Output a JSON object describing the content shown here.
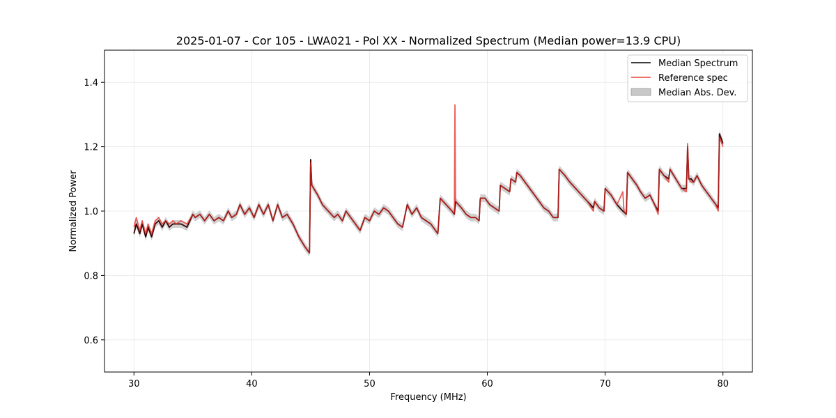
{
  "chart_data": {
    "type": "line",
    "title": "2025-01-07 - Cor 105 - LWA021 - Pol XX - Normalized Spectrum (Median power=13.9 CPU)",
    "xlabel": "Frequency (MHz)",
    "ylabel": "Normalized Power",
    "xlim": [
      27.5,
      82.5
    ],
    "ylim": [
      0.5,
      1.5
    ],
    "xticks": [
      30,
      40,
      50,
      60,
      70,
      80
    ],
    "yticks": [
      0.6,
      0.8,
      1.0,
      1.2,
      1.4
    ],
    "xtick_labels": [
      "30",
      "40",
      "50",
      "60",
      "70",
      "80"
    ],
    "ytick_labels": [
      "0.6",
      "0.8",
      "1.0",
      "1.2",
      "1.4"
    ],
    "grid": true,
    "legend_position": "top-right",
    "legend": [
      "Median Spectrum",
      "Reference spec",
      "Median Abs. Dev."
    ],
    "colors": {
      "median": "#000000",
      "reference": "#e8403a",
      "mad": "#b0b0b0",
      "overlap": "#8b0000"
    },
    "series": [
      {
        "name": "Median Spectrum",
        "x": [
          30.0,
          30.2,
          30.5,
          30.7,
          31.0,
          31.2,
          31.5,
          31.8,
          32.1,
          32.4,
          32.7,
          33.0,
          33.3,
          33.6,
          34.0,
          34.5,
          35.0,
          35.2,
          35.6,
          36.0,
          36.4,
          36.8,
          37.2,
          37.6,
          38.0,
          38.3,
          38.7,
          39.0,
          39.4,
          39.8,
          40.2,
          40.6,
          41.0,
          41.4,
          41.8,
          42.2,
          42.6,
          43.0,
          43.5,
          44.0,
          44.5,
          44.9,
          45.0,
          45.1,
          45.6,
          46.0,
          46.5,
          47.0,
          47.3,
          47.7,
          48.0,
          48.4,
          48.8,
          49.2,
          49.6,
          50.0,
          50.4,
          50.8,
          51.2,
          51.6,
          52.0,
          52.4,
          52.8,
          53.2,
          53.6,
          54.0,
          54.4,
          54.8,
          55.2,
          55.6,
          55.8,
          56.0,
          56.5,
          57.0,
          57.2,
          57.3,
          57.8,
          58.2,
          58.6,
          59.0,
          59.3,
          59.4,
          59.8,
          60.2,
          60.6,
          61.0,
          61.1,
          61.5,
          61.9,
          62.0,
          62.4,
          62.5,
          62.8,
          63.2,
          63.6,
          64.0,
          64.4,
          64.8,
          65.2,
          65.6,
          66.0,
          66.1,
          66.6,
          67.0,
          67.5,
          68.0,
          68.5,
          69.0,
          69.1,
          69.5,
          69.9,
          70.0,
          70.5,
          71.0,
          71.5,
          71.8,
          71.9,
          72.3,
          72.7,
          73.0,
          73.4,
          73.8,
          74.2,
          74.5,
          74.6,
          75.0,
          75.4,
          75.5,
          76.0,
          76.5,
          76.9,
          77.0,
          77.1,
          77.3,
          77.5,
          77.8,
          78.2,
          78.6,
          79.0,
          79.4,
          79.6,
          79.7,
          80.0
        ],
        "values": [
          0.93,
          0.96,
          0.93,
          0.96,
          0.92,
          0.95,
          0.92,
          0.96,
          0.97,
          0.95,
          0.97,
          0.95,
          0.96,
          0.96,
          0.96,
          0.95,
          0.99,
          0.98,
          0.99,
          0.97,
          0.99,
          0.97,
          0.98,
          0.97,
          1.0,
          0.98,
          0.99,
          1.02,
          0.99,
          1.01,
          0.98,
          1.02,
          0.99,
          1.02,
          0.97,
          1.02,
          0.98,
          0.99,
          0.96,
          0.92,
          0.89,
          0.87,
          1.16,
          1.08,
          1.05,
          1.02,
          1.0,
          0.98,
          0.99,
          0.97,
          1.0,
          0.98,
          0.96,
          0.94,
          0.98,
          0.97,
          1.0,
          0.99,
          1.01,
          1.0,
          0.98,
          0.96,
          0.95,
          1.02,
          0.99,
          1.01,
          0.98,
          0.97,
          0.96,
          0.94,
          0.93,
          1.04,
          1.02,
          1.0,
          0.99,
          1.03,
          1.01,
          0.99,
          0.98,
          0.98,
          0.97,
          1.04,
          1.04,
          1.02,
          1.01,
          1.0,
          1.08,
          1.07,
          1.06,
          1.1,
          1.09,
          1.12,
          1.11,
          1.09,
          1.07,
          1.05,
          1.03,
          1.01,
          1.0,
          0.98,
          0.98,
          1.13,
          1.11,
          1.09,
          1.07,
          1.05,
          1.03,
          1.01,
          1.03,
          1.01,
          1.0,
          1.07,
          1.05,
          1.02,
          1.0,
          0.99,
          1.12,
          1.1,
          1.08,
          1.06,
          1.04,
          1.05,
          1.02,
          1.0,
          1.13,
          1.11,
          1.1,
          1.13,
          1.1,
          1.07,
          1.07,
          1.2,
          1.1,
          1.1,
          1.09,
          1.11,
          1.08,
          1.06,
          1.04,
          1.02,
          1.01,
          1.24,
          1.21
        ],
        "spread": 0.012
      },
      {
        "name": "Reference spec",
        "x": [
          30.0,
          30.2,
          30.5,
          30.7,
          31.0,
          31.2,
          31.5,
          31.8,
          32.1,
          32.4,
          32.7,
          33.0,
          33.3,
          33.6,
          34.0,
          34.5,
          35.0,
          35.2,
          35.6,
          36.0,
          36.4,
          36.8,
          37.2,
          37.6,
          38.0,
          38.3,
          38.7,
          39.0,
          39.4,
          39.8,
          40.2,
          40.6,
          41.0,
          41.4,
          41.8,
          42.2,
          42.6,
          43.0,
          43.5,
          44.0,
          44.5,
          44.9,
          45.0,
          45.1,
          45.6,
          46.0,
          46.5,
          47.0,
          47.3,
          47.7,
          48.0,
          48.4,
          48.8,
          49.2,
          49.6,
          50.0,
          50.4,
          50.8,
          51.2,
          51.6,
          52.0,
          52.4,
          52.8,
          53.2,
          53.6,
          54.0,
          54.4,
          54.8,
          55.2,
          55.6,
          55.8,
          56.0,
          56.5,
          57.0,
          57.2,
          57.25,
          57.3,
          57.8,
          58.2,
          58.6,
          59.0,
          59.3,
          59.4,
          59.8,
          60.2,
          60.6,
          61.0,
          61.1,
          61.5,
          61.9,
          62.0,
          62.4,
          62.5,
          62.8,
          63.2,
          63.6,
          64.0,
          64.4,
          64.8,
          65.2,
          65.6,
          66.0,
          66.1,
          66.6,
          67.0,
          67.5,
          68.0,
          68.5,
          69.0,
          69.1,
          69.5,
          69.9,
          70.0,
          70.5,
          71.0,
          71.5,
          71.6,
          71.8,
          71.9,
          72.3,
          72.7,
          73.0,
          73.4,
          73.8,
          74.2,
          74.5,
          74.6,
          75.0,
          75.4,
          75.5,
          76.0,
          76.5,
          76.9,
          77.0,
          77.1,
          77.3,
          77.5,
          77.8,
          78.2,
          78.6,
          79.0,
          79.4,
          79.6,
          79.7,
          80.0
        ],
        "values": [
          0.95,
          0.98,
          0.94,
          0.97,
          0.93,
          0.96,
          0.93,
          0.97,
          0.98,
          0.96,
          0.97,
          0.96,
          0.97,
          0.96,
          0.97,
          0.96,
          0.99,
          0.98,
          0.99,
          0.97,
          0.99,
          0.97,
          0.98,
          0.97,
          1.0,
          0.98,
          0.99,
          1.02,
          0.99,
          1.01,
          0.98,
          1.02,
          0.99,
          1.02,
          0.97,
          1.02,
          0.98,
          0.99,
          0.96,
          0.92,
          0.89,
          0.87,
          1.15,
          1.08,
          1.05,
          1.02,
          1.0,
          0.98,
          0.99,
          0.97,
          1.0,
          0.98,
          0.96,
          0.94,
          0.98,
          0.97,
          1.0,
          0.99,
          1.01,
          1.0,
          0.98,
          0.96,
          0.95,
          1.02,
          0.99,
          1.01,
          0.98,
          0.97,
          0.96,
          0.94,
          0.93,
          1.04,
          1.02,
          1.0,
          0.99,
          1.33,
          1.03,
          1.01,
          0.99,
          0.98,
          0.98,
          0.97,
          1.04,
          1.04,
          1.02,
          1.01,
          1.0,
          1.08,
          1.07,
          1.06,
          1.1,
          1.09,
          1.12,
          1.11,
          1.09,
          1.07,
          1.05,
          1.03,
          1.01,
          1.0,
          0.98,
          0.98,
          1.13,
          1.11,
          1.09,
          1.07,
          1.05,
          1.03,
          1.0,
          1.03,
          1.01,
          1.0,
          1.07,
          1.05,
          1.02,
          1.06,
          1.0,
          0.99,
          1.12,
          1.1,
          1.08,
          1.06,
          1.04,
          1.05,
          1.02,
          0.99,
          1.13,
          1.11,
          1.09,
          1.13,
          1.1,
          1.07,
          1.06,
          1.21,
          1.1,
          1.09,
          1.09,
          1.11,
          1.08,
          1.06,
          1.04,
          1.02,
          1.0,
          1.23,
          1.2
        ]
      }
    ]
  }
}
